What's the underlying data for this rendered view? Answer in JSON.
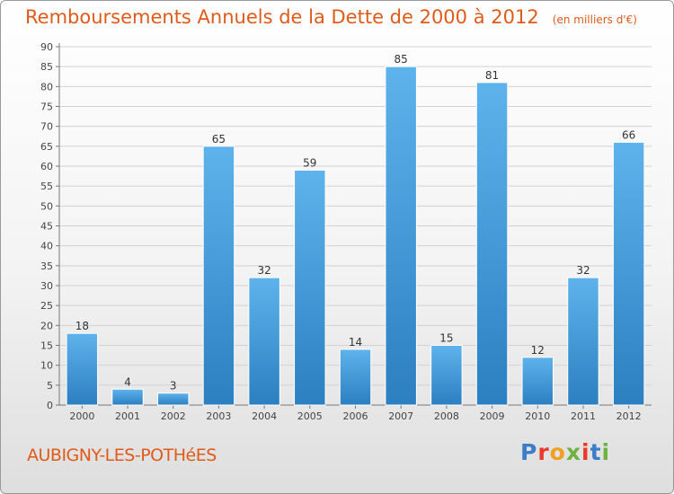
{
  "chart_data": {
    "type": "bar",
    "title": "Remboursements Annuels de la Dette de 2000 à 2012",
    "unit_label": "(en milliers d'€)",
    "categories": [
      "2000",
      "2001",
      "2002",
      "2003",
      "2004",
      "2005",
      "2006",
      "2007",
      "2008",
      "2009",
      "2010",
      "2011",
      "2012"
    ],
    "values": [
      18,
      4,
      3,
      65,
      32,
      59,
      14,
      85,
      15,
      81,
      12,
      32,
      66
    ],
    "ylim": [
      0,
      90
    ],
    "yticks": [
      0,
      5,
      10,
      15,
      20,
      25,
      30,
      35,
      40,
      45,
      50,
      55,
      60,
      65,
      70,
      75,
      80,
      85,
      90
    ],
    "grid": true,
    "bar_color": "#3e9ad8",
    "title_color": "#e05a1a"
  },
  "commune": "AUBIGNY-LES-POTHéES",
  "logo": {
    "text": "Proxiti",
    "letter_colors": [
      "#3a7dc9",
      "#e8392b",
      "#f0a020",
      "#6cb33f",
      "#e8392b",
      "#3a7dc9",
      "#6cb33f"
    ]
  }
}
